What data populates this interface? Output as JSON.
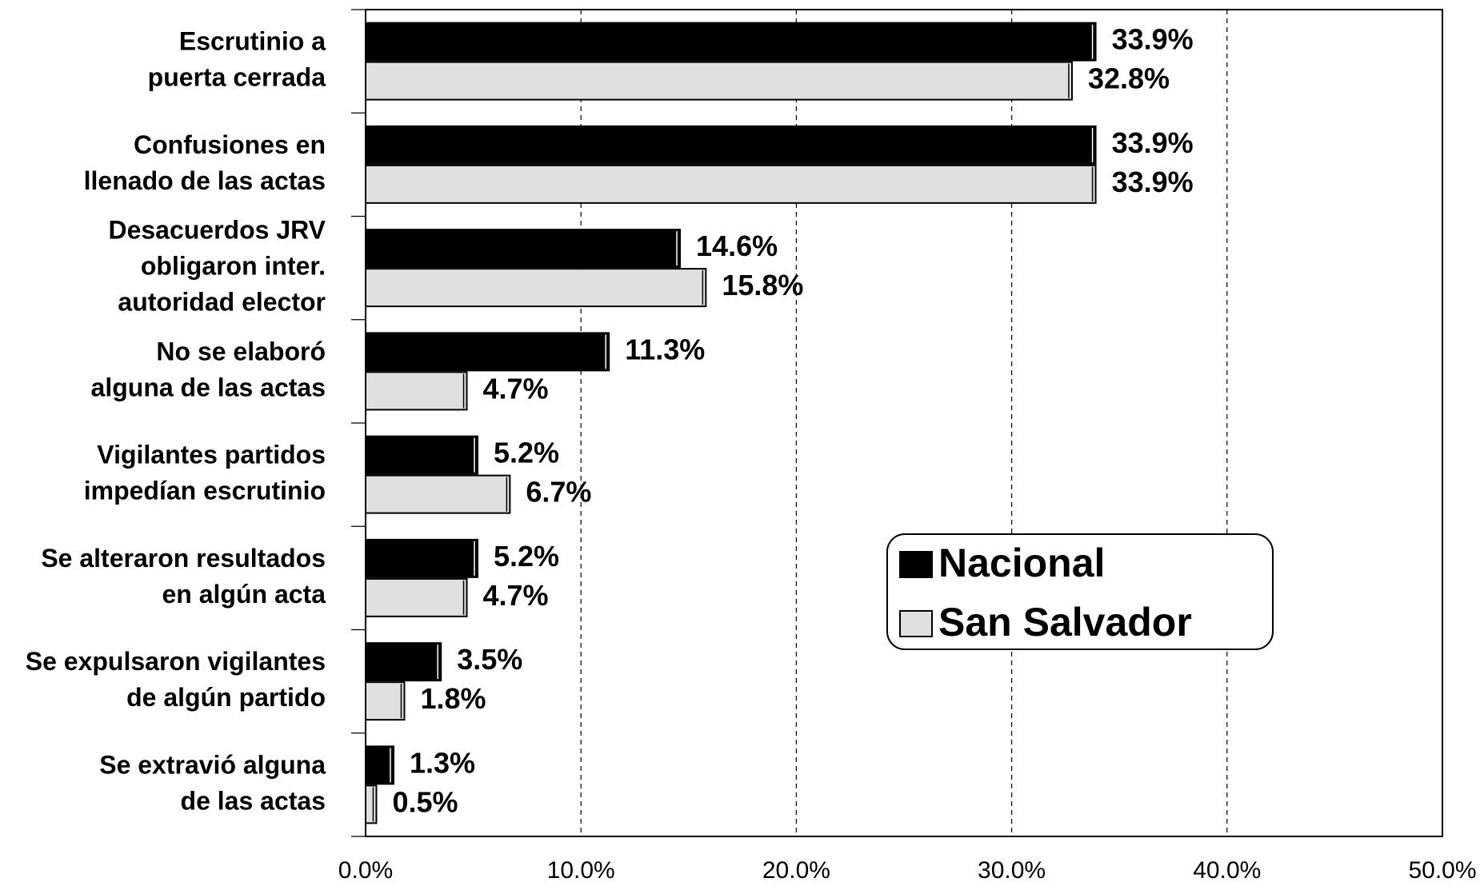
{
  "chart_data": {
    "type": "barh",
    "categories": [
      [
        "Escrutinio a",
        "puerta cerrada"
      ],
      [
        "Confusiones en",
        "llenado de las actas"
      ],
      [
        "Desacuerdos JRV",
        "obligaron inter.",
        "autoridad elector"
      ],
      [
        "No se elaboró",
        "alguna de las actas"
      ],
      [
        "Vigilantes partidos",
        "impedían escrutinio"
      ],
      [
        "Se alteraron resultados",
        "en algún acta"
      ],
      [
        "Se expulsaron vigilantes",
        "de algún partido"
      ],
      [
        "Se extravió alguna",
        "de las actas"
      ]
    ],
    "series": [
      {
        "name": "Nacional",
        "color": "#000000",
        "values": [
          33.9,
          33.9,
          14.6,
          11.3,
          5.2,
          5.2,
          3.5,
          1.3
        ],
        "value_labels": [
          "33.9%",
          "33.9%",
          "14.6%",
          "11.3%",
          "5.2%",
          "5.2%",
          "3.5%",
          "1.3%"
        ]
      },
      {
        "name": "San Salvador",
        "color": "#e0e0e0",
        "values": [
          32.8,
          33.9,
          15.8,
          4.7,
          6.7,
          4.7,
          1.8,
          0.5
        ],
        "value_labels": [
          "32.8%",
          "33.9%",
          "15.8%",
          "4.7%",
          "6.7%",
          "4.7%",
          "1.8%",
          "0.5%"
        ]
      }
    ],
    "xlim": [
      0,
      50
    ],
    "xticks": [
      {
        "value": 0,
        "label": "0.0%"
      },
      {
        "value": 10,
        "label": "10.0%"
      },
      {
        "value": 20,
        "label": "20.0%"
      },
      {
        "value": 30,
        "label": "30.0%"
      },
      {
        "value": 40,
        "label": "40.0%"
      },
      {
        "value": 50,
        "label": "50.0%"
      }
    ],
    "grid": true,
    "legend": "lower right"
  }
}
